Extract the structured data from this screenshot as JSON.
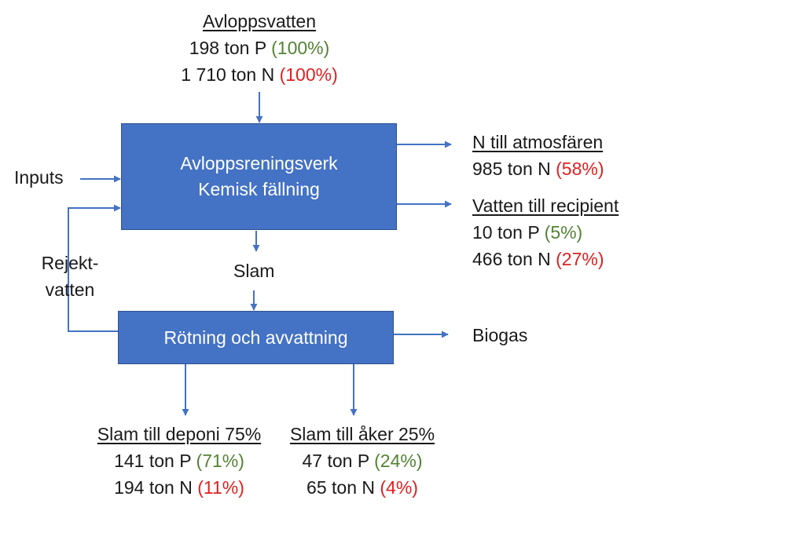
{
  "colors": {
    "box_fill": "#4472c4",
    "arrow": "#4472c4",
    "phosphorus_pct": "#548235",
    "nitrogen_pct": "#e02020"
  },
  "wastewater": {
    "title": "Avloppsvatten",
    "p_line": "198 ton P",
    "p_pct": "(100%)",
    "n_line": "1 710 ton N",
    "n_pct": "(100%)"
  },
  "plant_box": {
    "line1": "Avloppsreningsverk",
    "line2": "Kemisk fällning"
  },
  "inputs_label": "Inputs",
  "reject_water": {
    "line1": "Rejekt-",
    "line2": "vatten"
  },
  "sludge_label": "Slam",
  "digestion_box": {
    "label": "Rötning och avvattning"
  },
  "biogas_label": "Biogas",
  "atmosphere": {
    "title": "N till atmosfären",
    "n_line": "985 ton N",
    "n_pct": "(58%)"
  },
  "recipient": {
    "title": "Vatten till recipient",
    "p_line": "10 ton P",
    "p_pct": "(5%)",
    "n_line": "466 ton N",
    "n_pct": "(27%)"
  },
  "landfill": {
    "title": "Slam till deponi 75%",
    "p_line": "141 ton P",
    "p_pct": "(71%)",
    "n_line": "194 ton N",
    "n_pct": "(11%)"
  },
  "farmland": {
    "title": "Slam till åker 25%",
    "p_line": "47 ton P",
    "p_pct": "(24%)",
    "n_line": "65 ton N",
    "n_pct": "(4%)"
  }
}
